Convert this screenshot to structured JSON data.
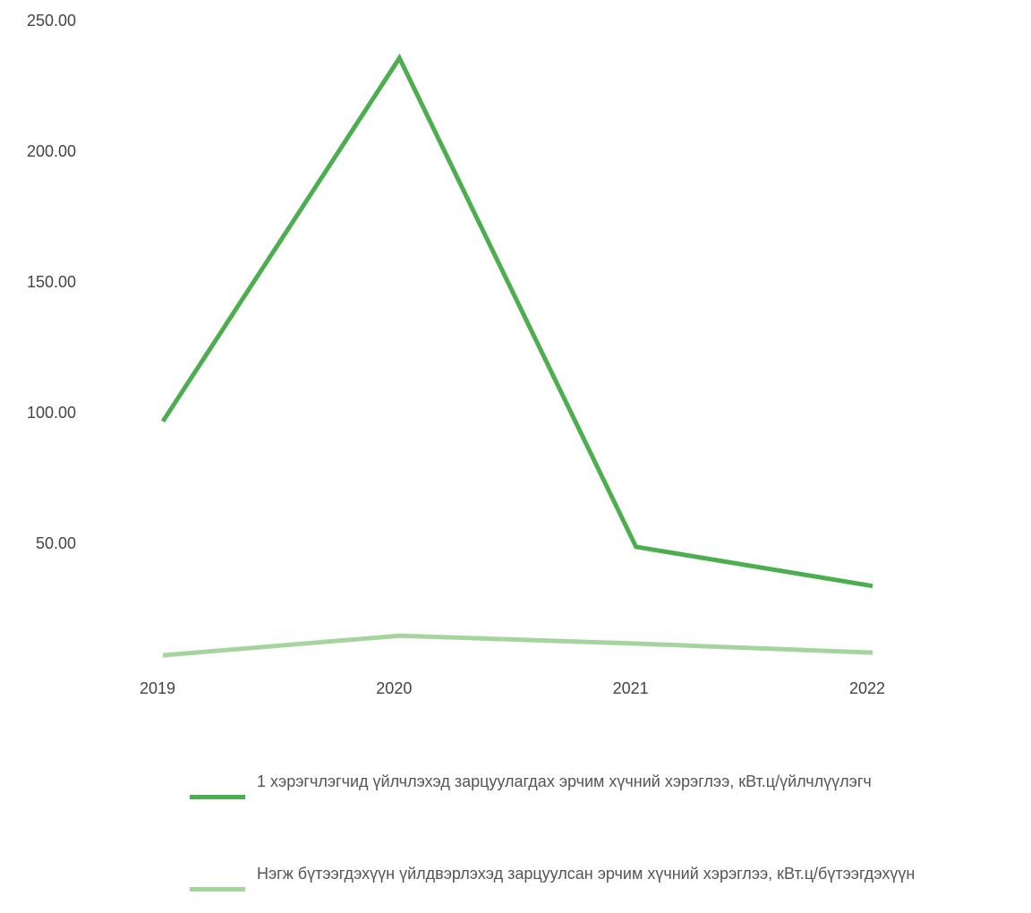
{
  "chart_data": {
    "type": "line",
    "categories": [
      "2019",
      "2020",
      "2021",
      "2022"
    ],
    "series": [
      {
        "name": "1 хэрэгчлэгчид үйлчлэхэд зарцуулагдах эрчим хүчний хэрэглээ, кВт.ц/үйлчлүүлэгч",
        "color": "#4cae4f",
        "values": [
          97,
          236,
          49,
          34
        ]
      },
      {
        "name": "Нэгж бүтээгдэхүүн үйлдвэрлэхэд зарцуулсан эрчим хүчний хэрэглээ, кВт.ц/бүтээгдэхүүн",
        "color": "#a6d49f",
        "values": [
          7.5,
          15,
          12,
          8.5
        ]
      }
    ],
    "ylim": [
      0,
      250
    ],
    "yticks": [
      {
        "value": 50,
        "label": "50.00"
      },
      {
        "value": 100,
        "label": "100.00"
      },
      {
        "value": 150,
        "label": "150.00"
      },
      {
        "value": 200,
        "label": "200.00"
      },
      {
        "value": 250,
        "label": "250.00"
      }
    ],
    "grid": false,
    "legend": "bottom"
  }
}
